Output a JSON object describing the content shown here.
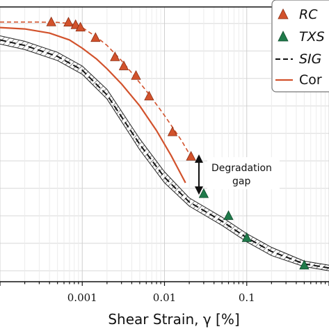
{
  "chart_data": {
    "type": "line",
    "xlabel": "Shear Strain, γ [%]",
    "xscale": "log",
    "xlim": [
      0.0001,
      1
    ],
    "ylim": [
      0,
      1
    ],
    "x_ticks": [
      {
        "value": 0.001,
        "label": "0.001"
      },
      {
        "value": 0.01,
        "label": "0.01"
      },
      {
        "value": 0.1,
        "label": "0.1"
      }
    ],
    "y_gridlines": [
      0.04,
      0.14,
      0.24,
      0.34,
      0.44,
      0.54,
      0.64,
      0.74,
      0.84,
      0.94
    ],
    "grid": true,
    "legend": {
      "position": "top-right",
      "entries": [
        {
          "label": "RC",
          "marker": "triangle",
          "color": "#d2522c"
        },
        {
          "label": "TXS",
          "marker": "triangle",
          "color": "#1f7a4a"
        },
        {
          "label": "SIG",
          "style": "dashed",
          "color": "#111111"
        },
        {
          "label": "Cor",
          "style": "solid",
          "color": "#d2522c"
        }
      ]
    },
    "series": [
      {
        "name": "RC",
        "kind": "markers",
        "color": "#d2522c",
        "x": [
          0.00042,
          0.00068,
          0.00083,
          0.00095,
          0.00145,
          0.0025,
          0.0032,
          0.0045,
          0.0065,
          0.0125,
          0.021
        ],
        "y": [
          0.945,
          0.944,
          0.935,
          0.926,
          0.888,
          0.818,
          0.785,
          0.75,
          0.675,
          0.545,
          0.456
        ]
      },
      {
        "name": "RC-fit",
        "kind": "dashed",
        "color": "#d2522c",
        "x": [
          0.0001,
          0.0003,
          0.0005,
          0.0007,
          0.001,
          0.0015,
          0.002,
          0.003,
          0.004,
          0.006,
          0.008,
          0.01,
          0.013,
          0.016,
          0.021
        ],
        "y": [
          0.945,
          0.945,
          0.944,
          0.94,
          0.925,
          0.89,
          0.86,
          0.805,
          0.76,
          0.695,
          0.645,
          0.605,
          0.555,
          0.515,
          0.455
        ]
      },
      {
        "name": "TXS",
        "kind": "markers",
        "color": "#1f7a4a",
        "x": [
          0.03,
          0.06,
          0.1,
          0.5
        ],
        "y": [
          0.32,
          0.24,
          0.16,
          0.06
        ]
      },
      {
        "name": "SIG",
        "kind": "dashed",
        "color": "#111111",
        "x": [
          0.0001,
          0.0002,
          0.0005,
          0.001,
          0.002,
          0.005,
          0.01,
          0.02,
          0.05,
          0.1,
          0.2,
          0.5,
          1.0
        ],
        "y": [
          0.88,
          0.86,
          0.82,
          0.77,
          0.68,
          0.5,
          0.38,
          0.29,
          0.22,
          0.16,
          0.11,
          0.065,
          0.05
        ]
      },
      {
        "name": "SIG-upper",
        "kind": "band-edge",
        "color": "#222222",
        "x": [
          0.0001,
          0.0002,
          0.0005,
          0.001,
          0.002,
          0.005,
          0.01,
          0.02,
          0.05,
          0.1,
          0.2,
          0.5,
          1.0
        ],
        "y": [
          0.895,
          0.875,
          0.835,
          0.785,
          0.7,
          0.52,
          0.4,
          0.305,
          0.235,
          0.175,
          0.125,
          0.075,
          0.06
        ]
      },
      {
        "name": "SIG-lower",
        "kind": "band-edge",
        "color": "#222222",
        "x": [
          0.0001,
          0.0002,
          0.0005,
          0.001,
          0.002,
          0.005,
          0.01,
          0.02,
          0.05,
          0.1,
          0.2,
          0.5,
          1.0
        ],
        "y": [
          0.865,
          0.845,
          0.805,
          0.755,
          0.665,
          0.48,
          0.36,
          0.275,
          0.205,
          0.145,
          0.095,
          0.055,
          0.04
        ]
      },
      {
        "name": "Cor",
        "kind": "solid",
        "color": "#d2522c",
        "x": [
          0.0001,
          0.0002,
          0.0004,
          0.0007,
          0.001,
          0.0015,
          0.002,
          0.003,
          0.005,
          0.008,
          0.012,
          0.018
        ],
        "y": [
          0.925,
          0.92,
          0.905,
          0.88,
          0.85,
          0.81,
          0.775,
          0.72,
          0.64,
          0.55,
          0.46,
          0.36
        ]
      }
    ],
    "annotations": [
      {
        "text_lines": [
          "Degradation",
          "gap"
        ],
        "arrow": "double-vertical",
        "x": 0.027,
        "y_from": 0.54,
        "y_to": 0.345
      }
    ]
  }
}
